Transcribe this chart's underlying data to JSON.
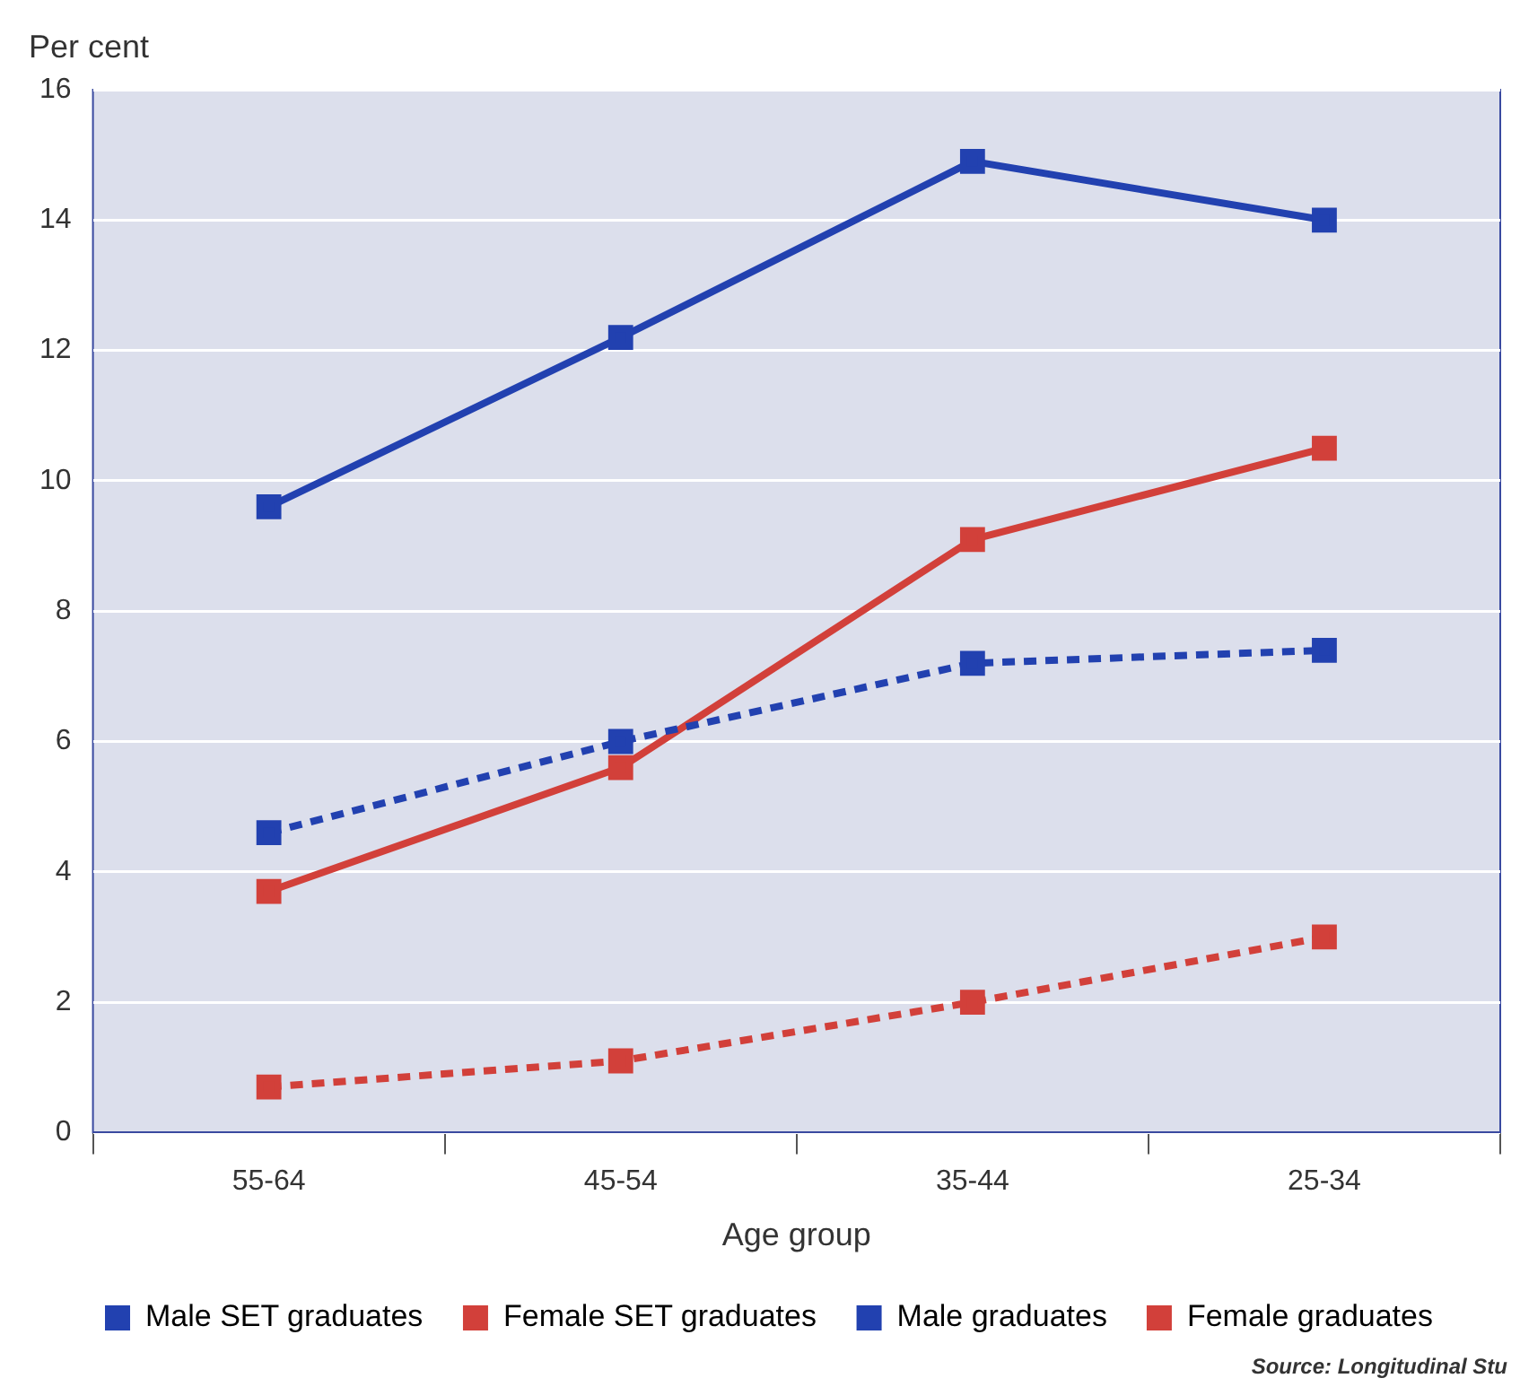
{
  "chart_data": {
    "type": "line",
    "ylabel": "Per cent",
    "xlabel": "Age group",
    "categories": [
      "55-64",
      "45-54",
      "35-44",
      "25-34"
    ],
    "series": [
      {
        "name": "Male SET graduates",
        "color": "#2241b0",
        "line_style": "dashed",
        "values": [
          4.6,
          6.0,
          7.2,
          7.4
        ]
      },
      {
        "name": "Female SET graduates",
        "color": "#d2403a",
        "line_style": "dashed",
        "values": [
          0.7,
          1.1,
          2.0,
          3.0
        ]
      },
      {
        "name": "Male graduates",
        "color": "#2241b0",
        "line_style": "solid",
        "values": [
          9.6,
          12.2,
          14.9,
          14.0
        ]
      },
      {
        "name": "Female graduates",
        "color": "#d2403a",
        "line_style": "solid",
        "values": [
          3.7,
          5.6,
          9.1,
          10.5
        ]
      }
    ],
    "ylim": [
      0,
      16
    ],
    "yticks": [
      0,
      2,
      4,
      6,
      8,
      10,
      12,
      14,
      16
    ],
    "grid": "y",
    "marker": "square",
    "legend": "bottom",
    "annotations": [
      "Source: Longitudinal Stu"
    ]
  }
}
